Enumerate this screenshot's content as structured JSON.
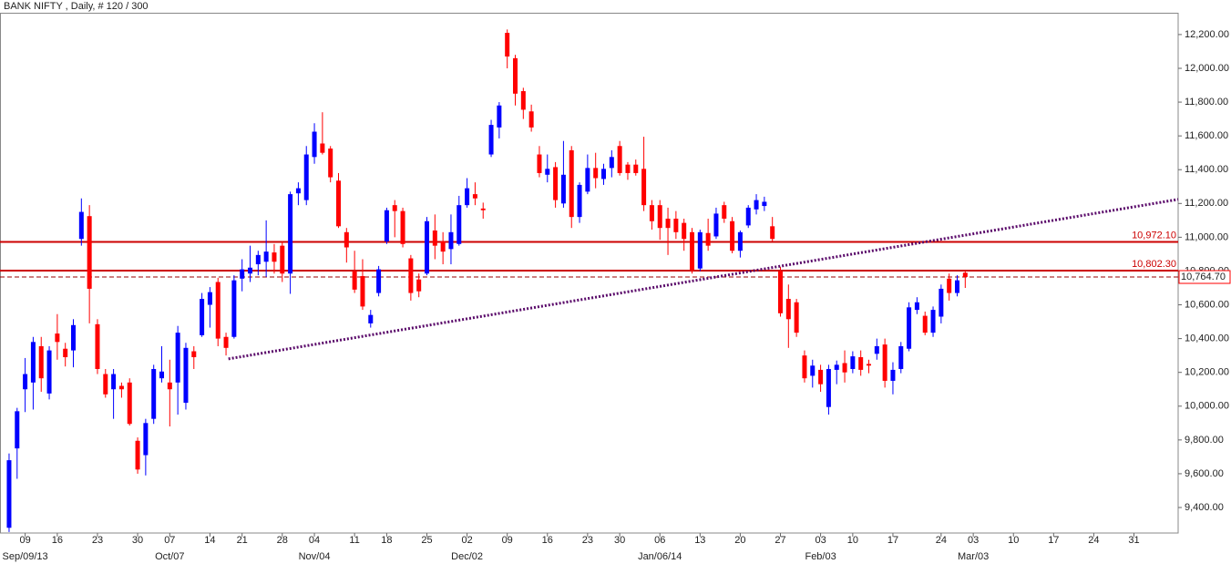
{
  "chart_data": {
    "type": "candlestick",
    "title": "BANK NIFTY , Daily, # 120 / 300",
    "up_color": "#0000ff",
    "down_color": "#ff0000",
    "xlim": [
      -1.13,
      145.5
    ],
    "ylim": [
      9249,
      12329
    ],
    "yticks": [
      {
        "value": 9400,
        "label": "9,400.00"
      },
      {
        "value": 9600,
        "label": "9,600.00"
      },
      {
        "value": 9800,
        "label": "9,800.00"
      },
      {
        "value": 10000,
        "label": "10,000.00"
      },
      {
        "value": 10200,
        "label": "10,200.00"
      },
      {
        "value": 10400,
        "label": "10,400.00"
      },
      {
        "value": 10600,
        "label": "10,600.00"
      },
      {
        "value": 10800,
        "label": "10,800.00"
      },
      {
        "value": 11000,
        "label": "11,000.00"
      },
      {
        "value": 11200,
        "label": "11,200.00"
      },
      {
        "value": 11400,
        "label": "11,400.00"
      },
      {
        "value": 11600,
        "label": "11,600.00"
      },
      {
        "value": 11800,
        "label": "11,800.00"
      },
      {
        "value": 12000,
        "label": "12,000.00"
      },
      {
        "value": 12200,
        "label": "12,200.00"
      }
    ],
    "xticks": [
      {
        "value": 2,
        "label": "09"
      },
      {
        "value": 6,
        "label": "16"
      },
      {
        "value": 11,
        "label": "23"
      },
      {
        "value": 16,
        "label": "30"
      },
      {
        "value": 20,
        "label": "07"
      },
      {
        "value": 25,
        "label": "14"
      },
      {
        "value": 29,
        "label": "21"
      },
      {
        "value": 34,
        "label": "28"
      },
      {
        "value": 38,
        "label": "04"
      },
      {
        "value": 43,
        "label": "11"
      },
      {
        "value": 47,
        "label": "18"
      },
      {
        "value": 52,
        "label": "25"
      },
      {
        "value": 57,
        "label": "02"
      },
      {
        "value": 62,
        "label": "09"
      },
      {
        "value": 67,
        "label": "16"
      },
      {
        "value": 72,
        "label": "23"
      },
      {
        "value": 76,
        "label": "30"
      },
      {
        "value": 81,
        "label": "06"
      },
      {
        "value": 86,
        "label": "13"
      },
      {
        "value": 91,
        "label": "20"
      },
      {
        "value": 96,
        "label": "27"
      },
      {
        "value": 101,
        "label": "03"
      },
      {
        "value": 105,
        "label": "10"
      },
      {
        "value": 110,
        "label": "17"
      },
      {
        "value": 116,
        "label": "24"
      },
      {
        "value": 120,
        "label": "03"
      },
      {
        "value": 125,
        "label": "10"
      },
      {
        "value": 130,
        "label": "17"
      },
      {
        "value": 135,
        "label": "24"
      },
      {
        "value": 140,
        "label": "31"
      }
    ],
    "month_labels": [
      {
        "value": 2,
        "label": "Sep/09/13"
      },
      {
        "value": 20,
        "label": "Oct/07"
      },
      {
        "value": 38,
        "label": "Nov/04"
      },
      {
        "value": 57,
        "label": "Dec/02"
      },
      {
        "value": 81,
        "label": "Jan/06/14"
      },
      {
        "value": 101,
        "label": "Feb/03"
      },
      {
        "value": 120,
        "label": "Mar/03"
      }
    ],
    "open": [
      9280,
      9750,
      10100,
      10140,
      10355,
      10075,
      10430,
      10340,
      10330,
      10990,
      11125,
      10485,
      10190,
      10100,
      10120,
      10140,
      9795,
      9710,
      9925,
      10165,
      10140,
      10140,
      10020,
      10325,
      10420,
      10600,
      10735,
      10410,
      10410,
      10755,
      10785,
      10840,
      10855,
      10910,
      10950,
      10785,
      11260,
      11220,
      11475,
      11555,
      11525,
      11335,
      11030,
      10800,
      10770,
      10490,
      10670,
      10975,
      11190,
      11155,
      10875,
      10750,
      10785,
      11040,
      10975,
      10930,
      10960,
      11190,
      11255,
      11170,
      11490,
      11650,
      12210,
      12060,
      11865,
      11745,
      11490,
      11370,
      11415,
      11200,
      11515,
      11120,
      11270,
      11410,
      11345,
      11410,
      11540,
      11430,
      11430,
      11405,
      11190,
      11190,
      11110,
      11110,
      11085,
      11030,
      10815,
      11025,
      11005,
      11190,
      11095,
      10920,
      11070,
      11165,
      11185,
      11065,
      10800,
      10635,
      10615,
      10300,
      10180,
      10215,
      9995,
      10215,
      10255,
      10220,
      10290,
      10250,
      10310,
      10365,
      10150,
      10220,
      10340,
      10570,
      10535,
      10435,
      10530,
      10755,
      10670,
      10790
    ],
    "high": [
      9720,
      9990,
      10285,
      10410,
      10410,
      10355,
      10545,
      10375,
      10515,
      11230,
      11190,
      10515,
      10220,
      10220,
      10140,
      10165,
      9815,
      9925,
      10245,
      10355,
      10275,
      10475,
      10375,
      10355,
      10670,
      10705,
      10760,
      10435,
      10775,
      10870,
      10950,
      10920,
      11100,
      10960,
      10975,
      11270,
      11325,
      11540,
      11675,
      11740,
      11540,
      11380,
      11055,
      10920,
      10870,
      10570,
      10830,
      11175,
      11220,
      11175,
      10895,
      10785,
      11120,
      11135,
      11030,
      11135,
      11245,
      11350,
      11325,
      11205,
      11695,
      11800,
      12230,
      12080,
      11885,
      11785,
      11540,
      11490,
      11445,
      11570,
      11540,
      11325,
      11490,
      11500,
      11435,
      11515,
      11570,
      11445,
      11460,
      11595,
      11220,
      11220,
      11175,
      11155,
      11110,
      11055,
      11045,
      11110,
      11175,
      11210,
      11120,
      11040,
      11190,
      11255,
      11240,
      11120,
      10825,
      10720,
      10635,
      10330,
      10275,
      10245,
      10245,
      10270,
      10330,
      10325,
      10330,
      10275,
      10400,
      10400,
      10260,
      10380,
      10615,
      10645,
      10560,
      10590,
      10720,
      10785,
      10775,
      10800
    ],
    "low": [
      9255,
      9570,
      9965,
      9980,
      10085,
      10040,
      10275,
      10235,
      10230,
      10950,
      10490,
      10190,
      10050,
      9925,
      10050,
      9885,
      9600,
      9590,
      9895,
      10140,
      9880,
      9950,
      9980,
      10220,
      10410,
      10465,
      10355,
      10300,
      10400,
      10680,
      10735,
      10775,
      10765,
      10785,
      10735,
      10665,
      11190,
      11190,
      11435,
      11490,
      11325,
      11055,
      10850,
      10670,
      10570,
      10465,
      10650,
      10960,
      11000,
      10940,
      10625,
      10645,
      10775,
      10870,
      10840,
      10840,
      10950,
      11175,
      11190,
      11110,
      11475,
      11585,
      12000,
      11780,
      11700,
      11625,
      11355,
      11325,
      11175,
      11175,
      11055,
      11085,
      11255,
      11290,
      11310,
      11355,
      11365,
      11340,
      11365,
      11155,
      11045,
      10985,
      10895,
      10990,
      10920,
      10785,
      10800,
      10920,
      10990,
      11085,
      10905,
      10880,
      11055,
      11135,
      11155,
      10975,
      10530,
      10345,
      10410,
      10140,
      10110,
      10085,
      9950,
      10130,
      10140,
      10195,
      10180,
      10195,
      10275,
      10110,
      10070,
      10195,
      10325,
      10545,
      10420,
      10410,
      10490,
      10625,
      10650,
      10700
    ],
    "close": [
      9680,
      9970,
      10190,
      10380,
      10165,
      10330,
      10380,
      10290,
      10480,
      11150,
      10695,
      10220,
      10070,
      10190,
      10100,
      9895,
      9625,
      9900,
      10220,
      10205,
      10100,
      10435,
      10345,
      10290,
      10635,
      10675,
      10400,
      10345,
      10745,
      10810,
      10820,
      10895,
      10915,
      10855,
      10785,
      11255,
      11290,
      11490,
      11625,
      11500,
      11355,
      11065,
      10940,
      10690,
      10590,
      10540,
      10810,
      11160,
      11155,
      10960,
      10670,
      10680,
      11095,
      10950,
      10915,
      11030,
      11190,
      11290,
      11230,
      11160,
      11665,
      11780,
      12070,
      11850,
      11755,
      11650,
      11380,
      11405,
      11220,
      11370,
      11120,
      11310,
      11410,
      11350,
      11405,
      11475,
      11380,
      11380,
      11380,
      11190,
      11095,
      11055,
      11055,
      11030,
      10990,
      10805,
      11030,
      10950,
      11140,
      11110,
      10920,
      11030,
      11175,
      11220,
      11210,
      10990,
      10550,
      10515,
      10435,
      10165,
      10240,
      10130,
      10220,
      10245,
      10200,
      10295,
      10215,
      10240,
      10355,
      10150,
      10215,
      10355,
      10585,
      10615,
      10435,
      10570,
      10695,
      10670,
      10745,
      10764.7
    ],
    "levels": [
      {
        "value": 10972.1,
        "label": "10,972.10",
        "color": "#cc0000"
      },
      {
        "value": 10802.3,
        "label": "10,802.30",
        "color": "#cc0000"
      }
    ],
    "last_price": {
      "value": 10764.7,
      "label": "10,764.70",
      "color": "#990000"
    },
    "trendline": {
      "x": [
        27.3,
        145.5
      ],
      "y": [
        10280,
        11224
      ],
      "color": "#5a0a6a"
    }
  }
}
